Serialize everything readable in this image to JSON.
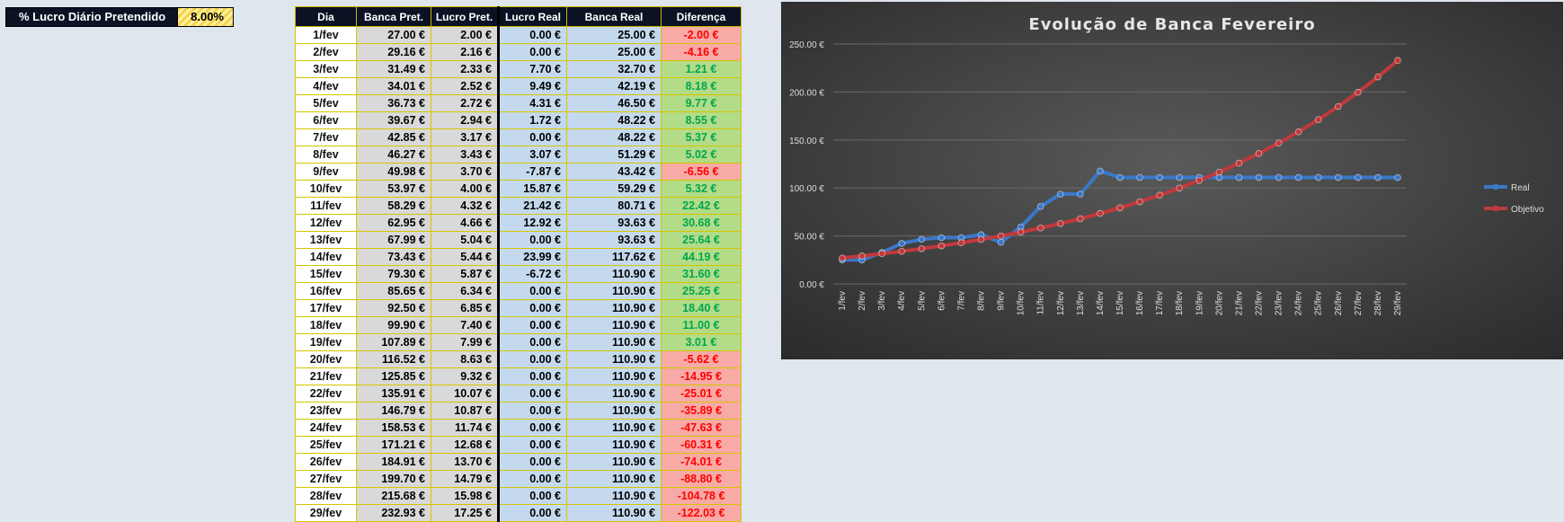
{
  "pct": {
    "label": "% Lucro Diário Pretendido",
    "value": "8.00%"
  },
  "table": {
    "headers": [
      "Dia",
      "Banca Pret.",
      "Lucro Pret.",
      "Lucro Real",
      "Banca Real",
      "Diferença"
    ],
    "rows": [
      [
        "1/fev",
        "27.00 €",
        "2.00 €",
        "0.00 €",
        "25.00 €",
        "-2.00 €"
      ],
      [
        "2/fev",
        "29.16 €",
        "2.16 €",
        "0.00 €",
        "25.00 €",
        "-4.16 €"
      ],
      [
        "3/fev",
        "31.49 €",
        "2.33 €",
        "7.70 €",
        "32.70 €",
        "1.21 €"
      ],
      [
        "4/fev",
        "34.01 €",
        "2.52 €",
        "9.49 €",
        "42.19 €",
        "8.18 €"
      ],
      [
        "5/fev",
        "36.73 €",
        "2.72 €",
        "4.31 €",
        "46.50 €",
        "9.77 €"
      ],
      [
        "6/fev",
        "39.67 €",
        "2.94 €",
        "1.72 €",
        "48.22 €",
        "8.55 €"
      ],
      [
        "7/fev",
        "42.85 €",
        "3.17 €",
        "0.00 €",
        "48.22 €",
        "5.37 €"
      ],
      [
        "8/fev",
        "46.27 €",
        "3.43 €",
        "3.07 €",
        "51.29 €",
        "5.02 €"
      ],
      [
        "9/fev",
        "49.98 €",
        "3.70 €",
        "-7.87 €",
        "43.42 €",
        "-6.56 €"
      ],
      [
        "10/fev",
        "53.97 €",
        "4.00 €",
        "15.87 €",
        "59.29 €",
        "5.32 €"
      ],
      [
        "11/fev",
        "58.29 €",
        "4.32 €",
        "21.42 €",
        "80.71 €",
        "22.42 €"
      ],
      [
        "12/fev",
        "62.95 €",
        "4.66 €",
        "12.92 €",
        "93.63 €",
        "30.68 €"
      ],
      [
        "13/fev",
        "67.99 €",
        "5.04 €",
        "0.00 €",
        "93.63 €",
        "25.64 €"
      ],
      [
        "14/fev",
        "73.43 €",
        "5.44 €",
        "23.99 €",
        "117.62 €",
        "44.19 €"
      ],
      [
        "15/fev",
        "79.30 €",
        "5.87 €",
        "-6.72 €",
        "110.90 €",
        "31.60 €"
      ],
      [
        "16/fev",
        "85.65 €",
        "6.34 €",
        "0.00 €",
        "110.90 €",
        "25.25 €"
      ],
      [
        "17/fev",
        "92.50 €",
        "6.85 €",
        "0.00 €",
        "110.90 €",
        "18.40 €"
      ],
      [
        "18/fev",
        "99.90 €",
        "7.40 €",
        "0.00 €",
        "110.90 €",
        "11.00 €"
      ],
      [
        "19/fev",
        "107.89 €",
        "7.99 €",
        "0.00 €",
        "110.90 €",
        "3.01 €"
      ],
      [
        "20/fev",
        "116.52 €",
        "8.63 €",
        "0.00 €",
        "110.90 €",
        "-5.62 €"
      ],
      [
        "21/fev",
        "125.85 €",
        "9.32 €",
        "0.00 €",
        "110.90 €",
        "-14.95 €"
      ],
      [
        "22/fev",
        "135.91 €",
        "10.07 €",
        "0.00 €",
        "110.90 €",
        "-25.01 €"
      ],
      [
        "23/fev",
        "146.79 €",
        "10.87 €",
        "0.00 €",
        "110.90 €",
        "-35.89 €"
      ],
      [
        "24/fev",
        "158.53 €",
        "11.74 €",
        "0.00 €",
        "110.90 €",
        "-47.63 €"
      ],
      [
        "25/fev",
        "171.21 €",
        "12.68 €",
        "0.00 €",
        "110.90 €",
        "-60.31 €"
      ],
      [
        "26/fev",
        "184.91 €",
        "13.70 €",
        "0.00 €",
        "110.90 €",
        "-74.01 €"
      ],
      [
        "27/fev",
        "199.70 €",
        "14.79 €",
        "0.00 €",
        "110.90 €",
        "-88.80 €"
      ],
      [
        "28/fev",
        "215.68 €",
        "15.98 €",
        "0.00 €",
        "110.90 €",
        "-104.78 €"
      ],
      [
        "29/fev",
        "232.93 €",
        "17.25 €",
        "0.00 €",
        "110.90 €",
        "-122.03 €"
      ]
    ]
  },
  "colors": {
    "header_bg": "#0a1224",
    "positive_fill": "#b2dc88",
    "positive_text": "#00a651",
    "negative_fill": "#f7aaa6",
    "negative_text": "#ff0000",
    "real_line": "#3a78c8",
    "objetivo_line": "#c0393b"
  },
  "chart_data": {
    "type": "line",
    "title": "Evolução de Banca Fevereiro",
    "xlabel": "",
    "ylabel": "",
    "ylim": [
      0,
      250
    ],
    "yticks": [
      "0.00 €",
      "50.00 €",
      "100.00 €",
      "150.00 €",
      "200.00 €",
      "250.00 €"
    ],
    "grid": true,
    "legend": "right",
    "categories": [
      "1/fev",
      "2/fev",
      "3/fev",
      "4/fev",
      "5/fev",
      "6/fev",
      "7/fev",
      "8/fev",
      "9/fev",
      "10/fev",
      "11/fev",
      "12/fev",
      "13/fev",
      "14/fev",
      "15/fev",
      "16/fev",
      "17/fev",
      "18/fev",
      "19/fev",
      "20/fev",
      "21/fev",
      "22/fev",
      "23/fev",
      "24/fev",
      "25/fev",
      "26/fev",
      "27/fev",
      "28/fev",
      "29/fev"
    ],
    "series": [
      {
        "name": "Real",
        "color": "#3a78c8",
        "values": [
          25.0,
          25.0,
          32.7,
          42.19,
          46.5,
          48.22,
          48.22,
          51.29,
          43.42,
          59.29,
          80.71,
          93.63,
          93.63,
          117.62,
          110.9,
          110.9,
          110.9,
          110.9,
          110.9,
          110.9,
          110.9,
          110.9,
          110.9,
          110.9,
          110.9,
          110.9,
          110.9,
          110.9,
          110.9
        ]
      },
      {
        "name": "Objetivo",
        "color": "#c0393b",
        "values": [
          27.0,
          29.16,
          31.49,
          34.01,
          36.73,
          39.67,
          42.85,
          46.27,
          49.98,
          53.97,
          58.29,
          62.95,
          67.99,
          73.43,
          79.3,
          85.65,
          92.5,
          99.9,
          107.89,
          116.52,
          125.85,
          135.91,
          146.79,
          158.53,
          171.21,
          184.91,
          199.7,
          215.68,
          232.93
        ]
      }
    ]
  }
}
